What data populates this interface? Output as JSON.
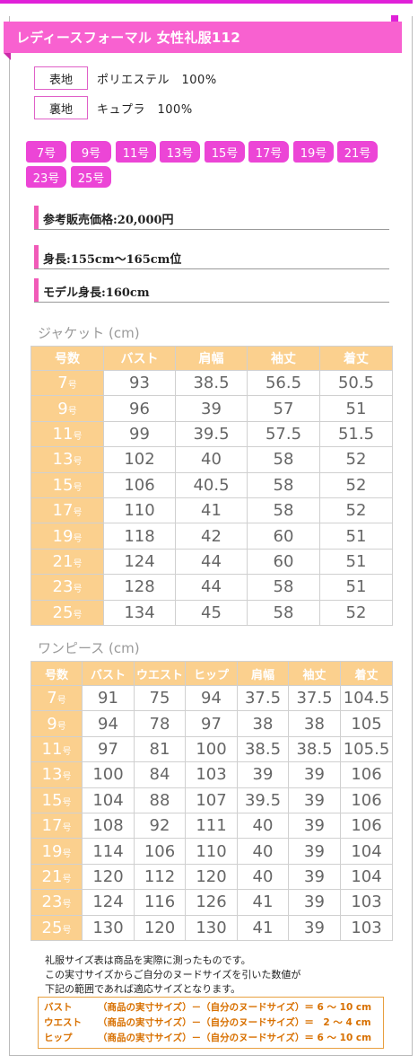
{
  "title": "レディースフォーマル 女性礼服112",
  "materials": [
    {
      "label": "表地",
      "value": "ポリエステル　100%"
    },
    {
      "label": "裏地",
      "value": "キュプラ　100%"
    }
  ],
  "sizes": [
    "7号",
    "9号",
    "11号",
    "13号",
    "15号",
    "17号",
    "19号",
    "21号",
    "23号",
    "25号"
  ],
  "info": [
    "参考販売価格:20,000円",
    "身長:155cm～165cm位",
    "モデル身長:160cm"
  ],
  "jacket": {
    "caption": "ジャケット (cm)",
    "headers": [
      "号数",
      "バスト",
      "肩幅",
      "袖丈",
      "着丈"
    ],
    "rows": [
      {
        "num": "7",
        "unit": "号",
        "vals": [
          "93",
          "38.5",
          "56.5",
          "50.5"
        ]
      },
      {
        "num": "9",
        "unit": "号",
        "vals": [
          "96",
          "39",
          "57",
          "51"
        ]
      },
      {
        "num": "11",
        "unit": "号",
        "vals": [
          "99",
          "39.5",
          "57.5",
          "51.5"
        ]
      },
      {
        "num": "13",
        "unit": "号",
        "vals": [
          "102",
          "40",
          "58",
          "52"
        ]
      },
      {
        "num": "15",
        "unit": "号",
        "vals": [
          "106",
          "40.5",
          "58",
          "52"
        ]
      },
      {
        "num": "17",
        "unit": "号",
        "vals": [
          "110",
          "41",
          "58",
          "52"
        ]
      },
      {
        "num": "19",
        "unit": "号",
        "vals": [
          "118",
          "42",
          "60",
          "51"
        ]
      },
      {
        "num": "21",
        "unit": "号",
        "vals": [
          "124",
          "44",
          "60",
          "51"
        ]
      },
      {
        "num": "23",
        "unit": "号",
        "vals": [
          "128",
          "44",
          "58",
          "51"
        ]
      },
      {
        "num": "25",
        "unit": "号",
        "vals": [
          "134",
          "45",
          "58",
          "52"
        ]
      }
    ]
  },
  "onepiece": {
    "caption": "ワンピース (cm)",
    "headers": [
      "号数",
      "バスト",
      "ウエスト",
      "ヒップ",
      "肩幅",
      "袖丈",
      "着丈"
    ],
    "rows": [
      {
        "num": "7",
        "unit": "号",
        "vals": [
          "91",
          "75",
          "94",
          "37.5",
          "37.5",
          "104.5"
        ]
      },
      {
        "num": "9",
        "unit": "号",
        "vals": [
          "94",
          "78",
          "97",
          "38",
          "38",
          "105"
        ]
      },
      {
        "num": "11",
        "unit": "号",
        "vals": [
          "97",
          "81",
          "100",
          "38.5",
          "38.5",
          "105.5"
        ]
      },
      {
        "num": "13",
        "unit": "号",
        "vals": [
          "100",
          "84",
          "103",
          "39",
          "39",
          "106"
        ]
      },
      {
        "num": "15",
        "unit": "号",
        "vals": [
          "104",
          "88",
          "107",
          "39.5",
          "39",
          "106"
        ]
      },
      {
        "num": "17",
        "unit": "号",
        "vals": [
          "108",
          "92",
          "111",
          "40",
          "39",
          "106"
        ]
      },
      {
        "num": "19",
        "unit": "号",
        "vals": [
          "114",
          "106",
          "110",
          "40",
          "39",
          "104"
        ]
      },
      {
        "num": "21",
        "unit": "号",
        "vals": [
          "120",
          "112",
          "120",
          "40",
          "39",
          "104"
        ]
      },
      {
        "num": "23",
        "unit": "号",
        "vals": [
          "124",
          "116",
          "126",
          "41",
          "39",
          "103"
        ]
      },
      {
        "num": "25",
        "unit": "号",
        "vals": [
          "130",
          "120",
          "130",
          "41",
          "39",
          "103"
        ]
      }
    ]
  },
  "notes": [
    "礼服サイズ表は商品を実際に測ったものです。",
    "この実寸サイズからご自分のヌードサイズを引いた数値が",
    "下記の範囲であれば適応サイズとなります。"
  ],
  "formulas": [
    {
      "label": "バスト",
      "expr": "（商品の実寸サイズ）－（自分のヌードサイズ）＝ 6 ～ 10 cm"
    },
    {
      "label": "ウエスト",
      "expr": "（商品の実寸サイズ）－（自分のヌードサイズ）＝　2 ～ 4 cm"
    },
    {
      "label": "ヒップ",
      "expr": "（商品の実寸サイズ）－（自分のヌードサイズ）＝ 6 ～ 10 cm"
    }
  ]
}
